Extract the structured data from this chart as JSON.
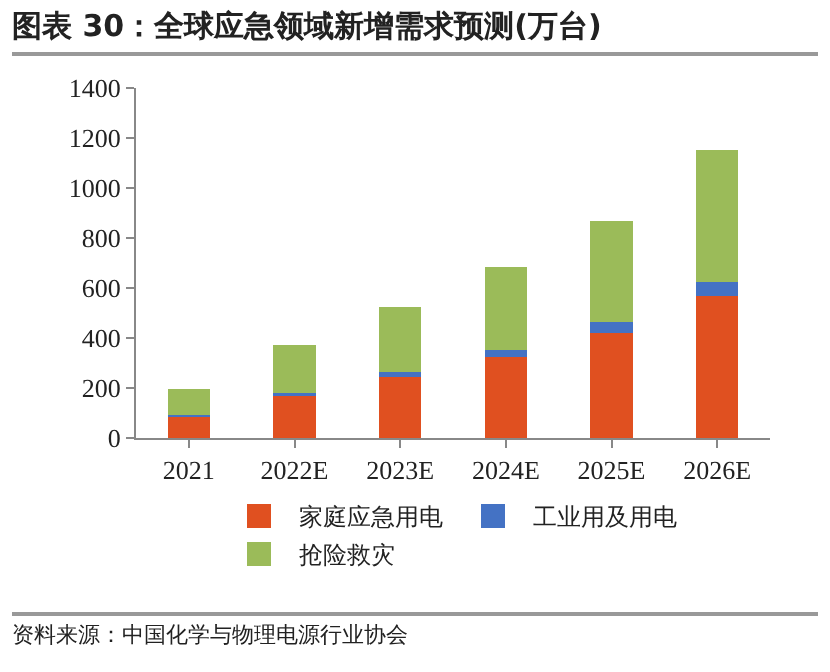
{
  "chart_data": {
    "type": "bar",
    "title": "图表 30：全球应急领域新增需求预测(万台)",
    "annotations": [
      "资料来源：中国化学与物理电源行业协会"
    ],
    "categories": [
      "2021",
      "2022E",
      "2023E",
      "2024E",
      "2025E",
      "2026E"
    ],
    "stacked": true,
    "ylim": [
      0,
      1400
    ],
    "yticks": [
      0,
      200,
      400,
      600,
      800,
      1000,
      1200,
      1400
    ],
    "grid": false,
    "legend": "bottom",
    "series": [
      {
        "name": "家庭应急用电",
        "color": "#e05020",
        "values": [
          84,
          167,
          244,
          323,
          421,
          567
        ]
      },
      {
        "name": "工业用及用电",
        "color": "#4472c4",
        "values": [
          9,
          14,
          19,
          30,
          42,
          59
        ]
      },
      {
        "name": "抢险救灾",
        "color": "#9bbb59",
        "values": [
          105,
          191,
          260,
          331,
          404,
          527
        ]
      }
    ]
  }
}
